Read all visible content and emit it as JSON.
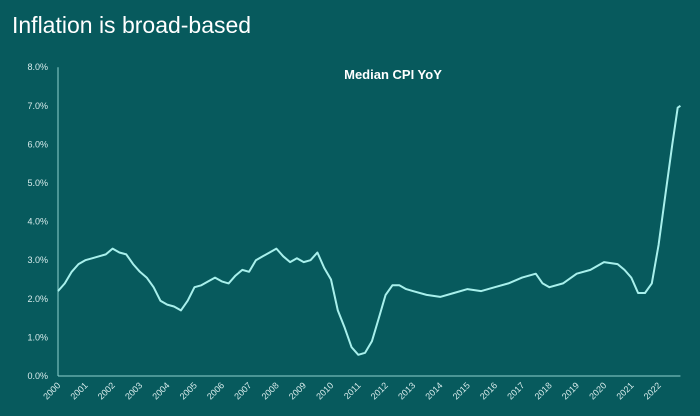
{
  "page_title": "Inflation is broad-based",
  "colors": {
    "background": "#075a5d",
    "line": "#a8f0ec",
    "axis": "#8fd3d0",
    "text": "#ffffff"
  },
  "chart_data": {
    "type": "line",
    "title": "Median CPI YoY",
    "xlabel": "",
    "ylabel": "",
    "ylim": [
      0,
      8
    ],
    "xlim": [
      2000,
      2022.8
    ],
    "grid": false,
    "y_ticks": [
      "0.0%",
      "1.0%",
      "2.0%",
      "3.0%",
      "4.0%",
      "5.0%",
      "6.0%",
      "7.0%",
      "8.0%"
    ],
    "x_ticks": [
      "2000",
      "2001",
      "2002",
      "2003",
      "2004",
      "2005",
      "2006",
      "2007",
      "2008",
      "2009",
      "2010",
      "2011",
      "2012",
      "2013",
      "2014",
      "2015",
      "2016",
      "2017",
      "2018",
      "2019",
      "2020",
      "2021",
      "2022"
    ],
    "series": [
      {
        "x": [
          2000,
          2000.25,
          2000.5,
          2000.75,
          2001,
          2001.25,
          2001.5,
          2001.75,
          2002,
          2002.25,
          2002.5,
          2002.75,
          2003,
          2003.25,
          2003.5,
          2003.75,
          2004,
          2004.25,
          2004.5,
          2004.75,
          2005,
          2005.25,
          2005.5,
          2005.75,
          2006,
          2006.25,
          2006.5,
          2006.75,
          2007,
          2007.25,
          2007.5,
          2007.75,
          2008,
          2008.25,
          2008.5,
          2008.75,
          2009,
          2009.25,
          2009.5,
          2009.75,
          2010,
          2010.25,
          2010.5,
          2010.75,
          2011,
          2011.25,
          2011.5,
          2011.75,
          2012,
          2012.25,
          2012.5,
          2012.75,
          2013,
          2013.5,
          2014,
          2014.5,
          2015,
          2015.5,
          2016,
          2016.5,
          2017,
          2017.5,
          2017.75,
          2018,
          2018.5,
          2019,
          2019.5,
          2020,
          2020.5,
          2020.75,
          2021,
          2021.25,
          2021.5,
          2021.75,
          2022,
          2022.25,
          2022.5,
          2022.7,
          2022.8
        ],
        "values": [
          2.2,
          2.4,
          2.7,
          2.9,
          3.0,
          3.05,
          3.1,
          3.15,
          3.3,
          3.2,
          3.15,
          2.9,
          2.7,
          2.55,
          2.3,
          1.95,
          1.85,
          1.8,
          1.7,
          1.95,
          2.3,
          2.35,
          2.45,
          2.55,
          2.45,
          2.4,
          2.6,
          2.75,
          2.7,
          3.0,
          3.1,
          3.2,
          3.3,
          3.1,
          2.95,
          3.05,
          2.95,
          3.0,
          3.2,
          2.8,
          2.5,
          1.7,
          1.25,
          0.75,
          0.55,
          0.6,
          0.9,
          1.5,
          2.1,
          2.35,
          2.35,
          2.25,
          2.2,
          2.1,
          2.05,
          2.15,
          2.25,
          2.2,
          2.3,
          2.4,
          2.55,
          2.65,
          2.4,
          2.3,
          2.4,
          2.65,
          2.75,
          2.95,
          2.9,
          2.75,
          2.55,
          2.15,
          2.15,
          2.4,
          3.4,
          4.7,
          6.0,
          6.95,
          7.0
        ]
      }
    ]
  }
}
